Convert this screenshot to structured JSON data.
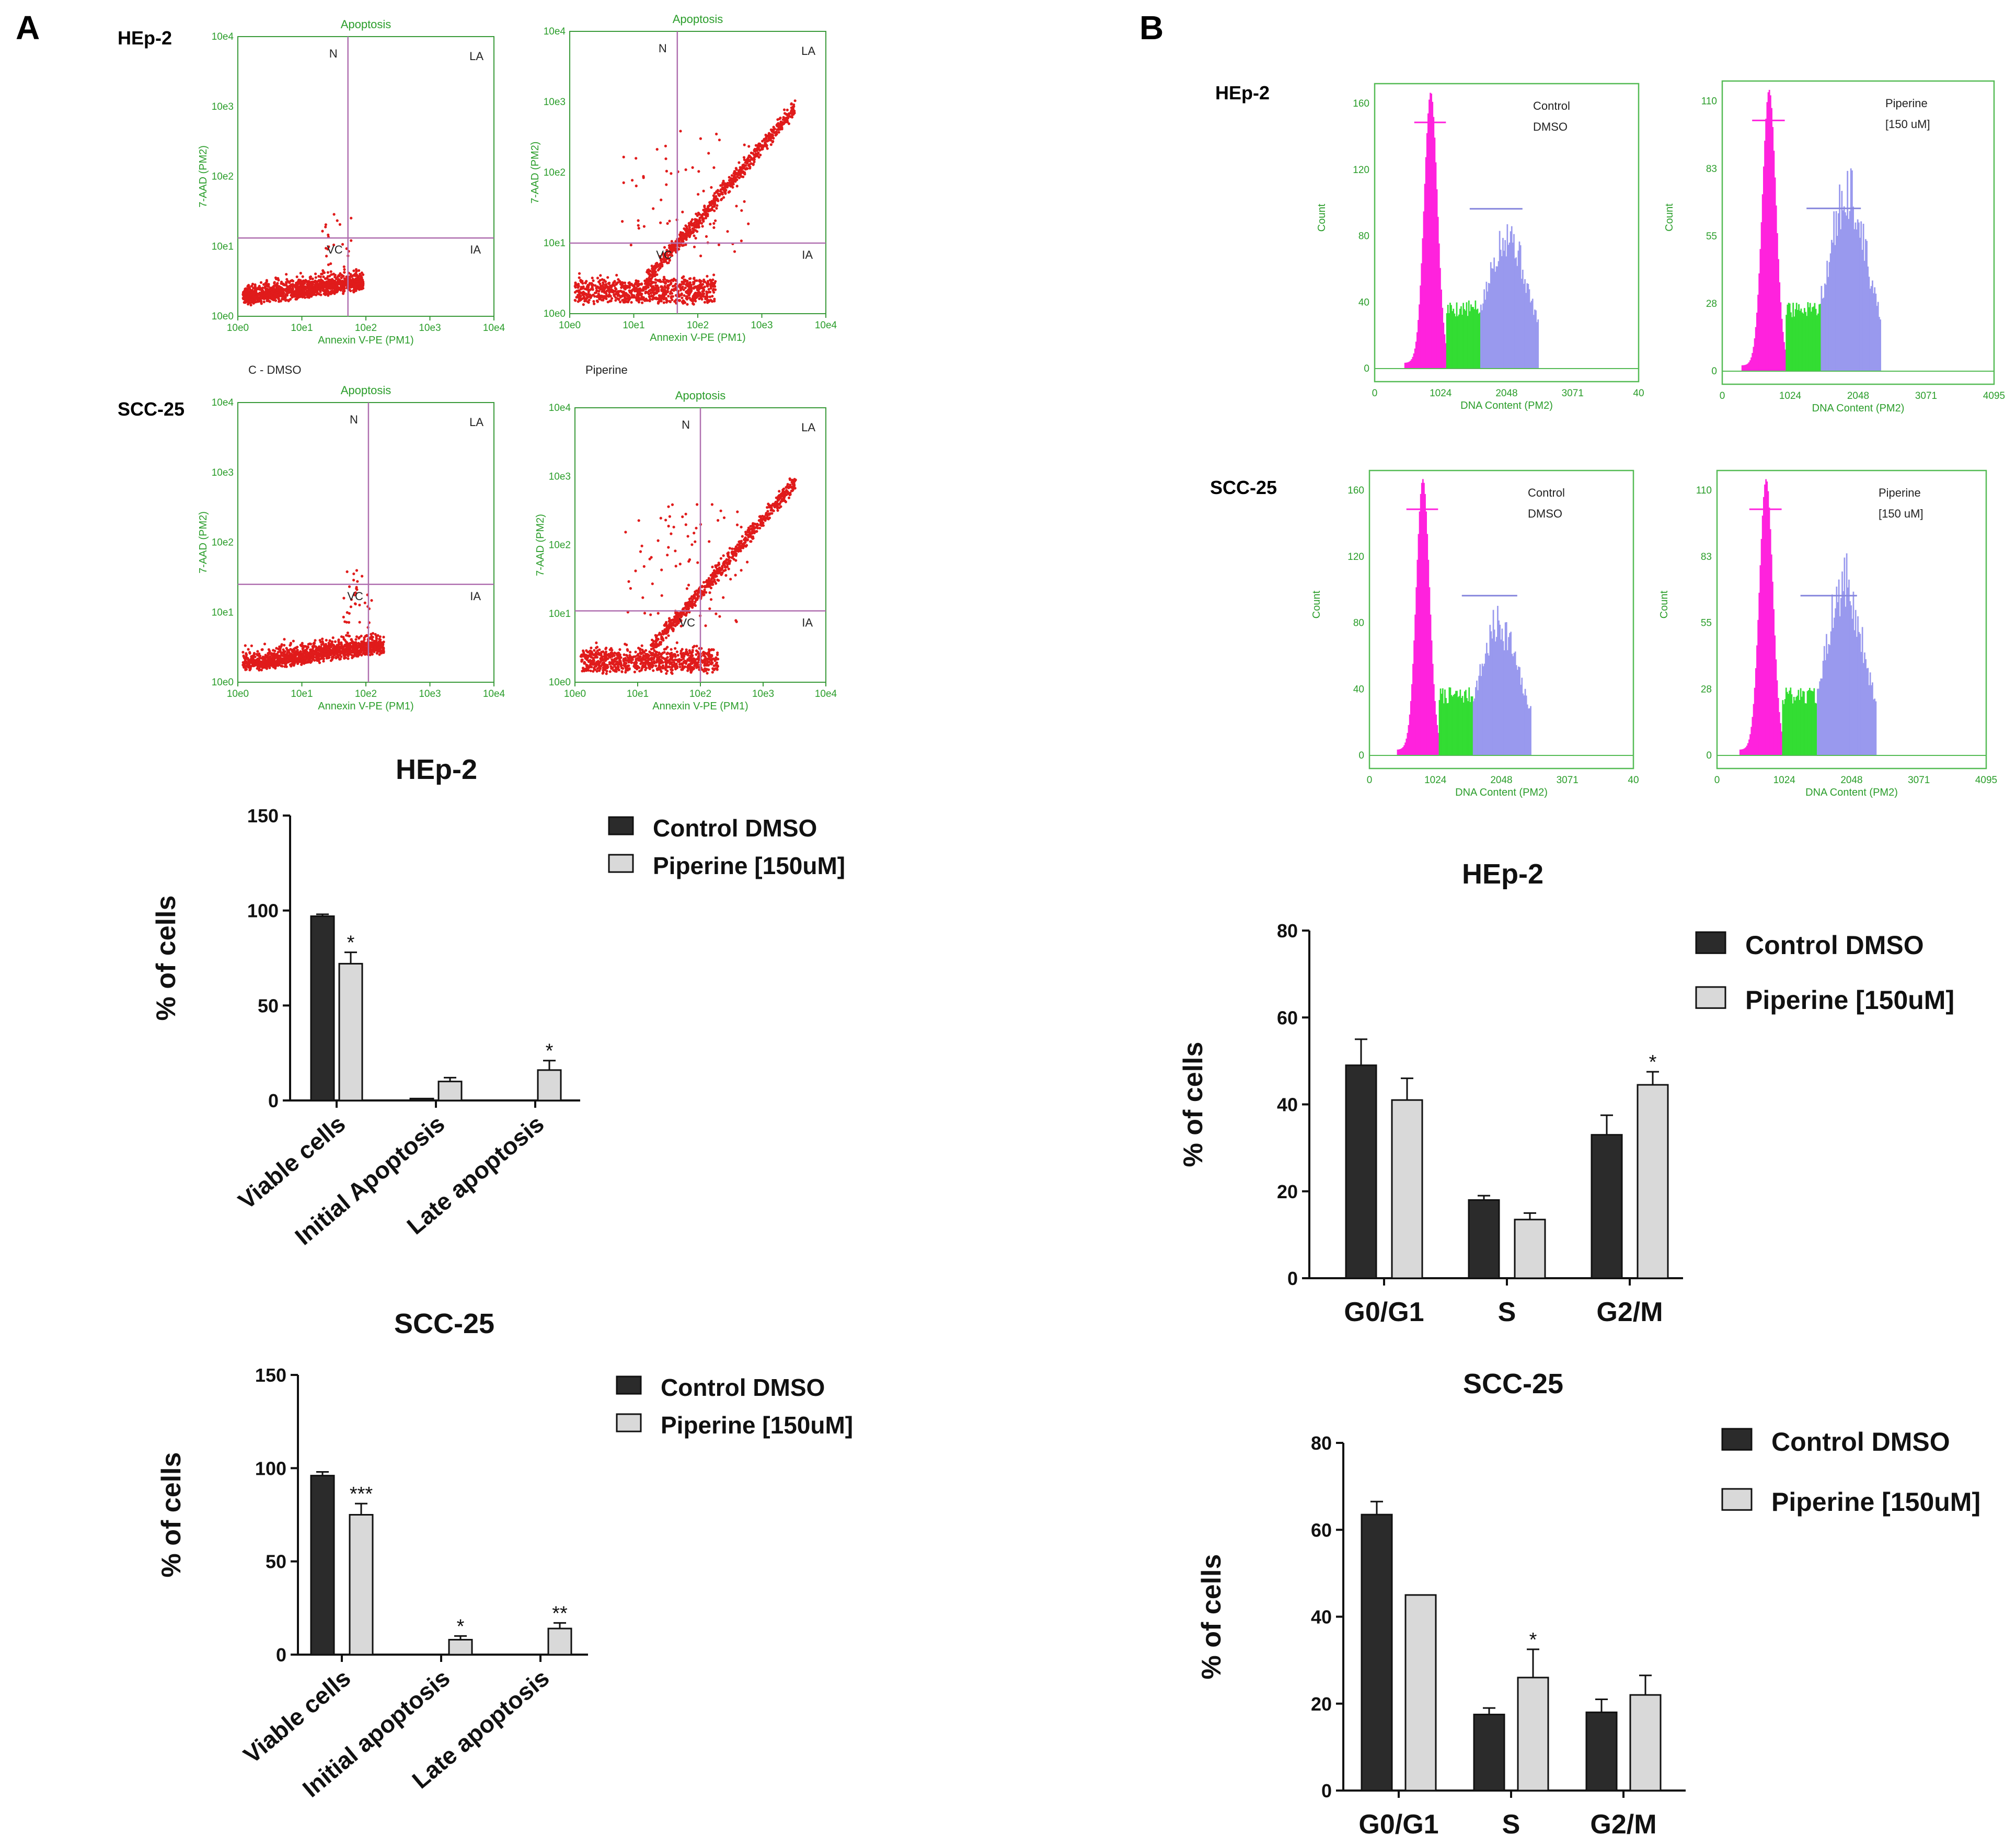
{
  "panels": {
    "a": "A",
    "b": "B"
  },
  "flow_cytometry": {
    "apoptosis_title": "Apoptosis",
    "x_axis_label": "Annexin V-PE (PM1)",
    "y_axis_label": "7-AAD (PM2)",
    "log_ticks": [
      "10e0",
      "10e1",
      "10e2",
      "10e3",
      "10e4"
    ],
    "quadrants": {
      "n": "N",
      "la": "LA",
      "ia": "IA",
      "vc": "VC"
    },
    "rows": [
      {
        "label": "HEp-2"
      },
      {
        "label": "SCC-25"
      }
    ],
    "columns": [
      {
        "label": "C - DMSO"
      },
      {
        "label": "Piperine"
      }
    ],
    "points_color": "#e01b1b",
    "gate_color": "#b070b0"
  },
  "dna_histograms": {
    "x_axis_label": "DNA Content (PM2)",
    "y_axis_label": "Count",
    "x_ticks": [
      "0",
      "1024",
      "2048",
      "3071",
      "4095"
    ],
    "x_ticks_truncated": [
      "0",
      "1024",
      "2048",
      "3071",
      "40"
    ],
    "rows": [
      {
        "label": "HEp-2",
        "control": {
          "line1": "Control",
          "line2": "DMSO",
          "y_ticks": [
            "0",
            "40",
            "80",
            "120",
            "160"
          ]
        },
        "piperine": {
          "line1": "Piperine",
          "line2": "[150 uM]",
          "y_ticks": [
            "0",
            "28",
            "55",
            "83",
            "110"
          ]
        }
      },
      {
        "label": "SCC-25",
        "control": {
          "line1": "Control",
          "line2": "DMSO",
          "y_ticks": [
            "0",
            "40",
            "80",
            "120",
            "160"
          ]
        },
        "piperine": {
          "line1": "Piperine",
          "line2": "[150 uM]",
          "y_ticks": [
            "0",
            "28",
            "55",
            "83",
            "110"
          ]
        }
      }
    ],
    "colors": {
      "g1": "#ff22dd",
      "s": "#33dd33",
      "g2": "#9999ee",
      "frame": "#55bb55"
    }
  },
  "colors": {
    "control": "#2b2b2b",
    "piperine": "#d9d9d9"
  },
  "chart_data": [
    {
      "type": "bar",
      "title": "HEp-2",
      "ylabel": "% of cells",
      "xlabel": "",
      "ylim": [
        0,
        150
      ],
      "yticks": [
        "0",
        "50",
        "100",
        "150"
      ],
      "categories": [
        "Viable cells",
        "Initial Apoptosis",
        "Late apoptosis"
      ],
      "series": [
        {
          "name": "Control DMSO",
          "values": [
            97,
            1,
            0
          ],
          "errors": [
            1,
            0,
            0
          ]
        },
        {
          "name": "Piperine [150uM]",
          "values": [
            72,
            10,
            16
          ],
          "errors": [
            6,
            2,
            5
          ]
        }
      ],
      "significance": [
        "*",
        "",
        "*"
      ],
      "legend": "top-right"
    },
    {
      "type": "bar",
      "title": "SCC-25",
      "ylabel": "% of cells",
      "xlabel": "",
      "ylim": [
        0,
        150
      ],
      "yticks": [
        "0",
        "50",
        "100",
        "150"
      ],
      "categories": [
        "Viable cells",
        "Initial apoptosis",
        "Late apoptosis"
      ],
      "series": [
        {
          "name": "Control DMSO",
          "values": [
            96,
            0,
            0
          ],
          "errors": [
            2,
            0,
            0
          ]
        },
        {
          "name": "Piperine [150uM]",
          "values": [
            75,
            8,
            14
          ],
          "errors": [
            6,
            2,
            3
          ]
        }
      ],
      "significance": [
        "***",
        "*",
        "**"
      ],
      "legend": "top-right"
    },
    {
      "type": "bar",
      "title": "HEp-2",
      "ylabel": "% of cells",
      "xlabel": "",
      "ylim": [
        0,
        80
      ],
      "yticks": [
        "0",
        "20",
        "40",
        "60",
        "80"
      ],
      "categories": [
        "G0/G1",
        "S",
        "G2/M"
      ],
      "series": [
        {
          "name": "Control DMSO",
          "values": [
            49,
            18,
            33
          ],
          "errors": [
            6,
            1,
            4.5
          ]
        },
        {
          "name": "Piperine [150uM]",
          "values": [
            41,
            13.5,
            44.5
          ],
          "errors": [
            5,
            1.5,
            3
          ]
        }
      ],
      "significance": [
        "",
        "",
        "*"
      ],
      "legend": "top-right"
    },
    {
      "type": "bar",
      "title": "SCC-25",
      "ylabel": "% of cells",
      "xlabel": "",
      "ylim": [
        0,
        80
      ],
      "yticks": [
        "0",
        "20",
        "40",
        "60",
        "80"
      ],
      "categories": [
        "G0/G1",
        "S",
        "G2/M"
      ],
      "series": [
        {
          "name": "Control DMSO",
          "values": [
            63.5,
            17.5,
            18
          ],
          "errors": [
            3,
            1.5,
            3
          ]
        },
        {
          "name": "Piperine [150uM]",
          "values": [
            45,
            26,
            22
          ],
          "errors": [
            0,
            6.5,
            4.5
          ]
        }
      ],
      "significance": [
        "",
        "*",
        ""
      ],
      "legend": "top-right"
    }
  ]
}
